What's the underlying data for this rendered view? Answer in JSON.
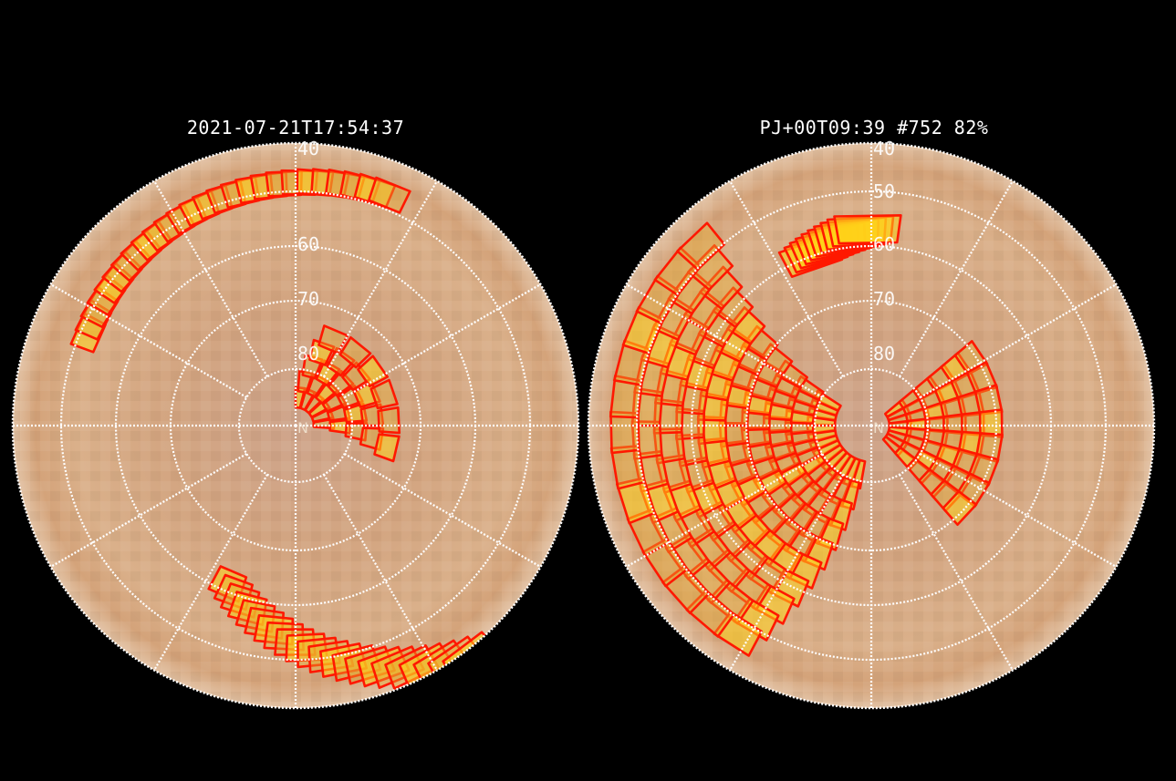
{
  "panels": [
    {
      "title": "2021-07-21T17:54:37",
      "latitude_labels": [
        "40",
        "60",
        "70",
        "80"
      ],
      "pole_label": "N"
    },
    {
      "title": "PJ+00T09:39 #752 82%",
      "latitude_labels": [
        "40",
        "50",
        "60",
        "70",
        "80"
      ],
      "pole_label": "N"
    }
  ],
  "colors": {
    "background": "#000000",
    "surface_light": "#e6c7a6",
    "surface_dark": "#b9875f",
    "grid": "#ffffff",
    "footprint_edge": "#ff1800",
    "footprint_fill": "#e8b030",
    "footprint_hot": "#ffd21a"
  }
}
